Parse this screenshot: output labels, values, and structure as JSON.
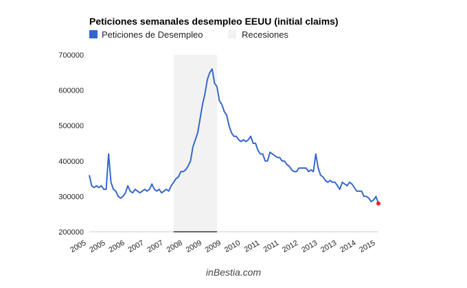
{
  "chart_data": {
    "type": "line",
    "title": "Peticiones semanales desempleo EEUU (initial claims)",
    "legend": {
      "placement": "top-left",
      "entries": [
        {
          "name": "Peticiones de Desempleo",
          "color": "#3366cc"
        },
        {
          "name": "Recesiones",
          "color": "#f2f2f2"
        }
      ]
    },
    "ylim": [
      200000,
      700000
    ],
    "yticks": [
      "200000",
      "300000",
      "400000",
      "500000",
      "600000",
      "700000"
    ],
    "xlim": [
      "2005-01",
      "2015-01"
    ],
    "xticks": [
      "2005",
      "2005",
      "2006",
      "2007",
      "2007",
      "2008",
      "2009",
      "2009",
      "2010",
      "2011",
      "2011",
      "2012",
      "2013",
      "2013",
      "2014",
      "2015"
    ],
    "grid": false,
    "recession": {
      "name": "Recesiones",
      "start": "2007-12",
      "end": "2009-06"
    },
    "series": [
      {
        "name": "Peticiones de Desempleo",
        "color": "#3366cc",
        "start": "2005-01",
        "frequency": "monthly",
        "values": [
          360000,
          330000,
          325000,
          330000,
          325000,
          330000,
          320000,
          320000,
          420000,
          340000,
          320000,
          315000,
          300000,
          295000,
          300000,
          310000,
          330000,
          315000,
          310000,
          320000,
          315000,
          310000,
          315000,
          320000,
          315000,
          320000,
          335000,
          320000,
          315000,
          320000,
          310000,
          315000,
          320000,
          315000,
          330000,
          340000,
          350000,
          355000,
          370000,
          370000,
          375000,
          385000,
          400000,
          440000,
          460000,
          480000,
          520000,
          560000,
          590000,
          630000,
          650000,
          660000,
          620000,
          610000,
          570000,
          560000,
          540000,
          530000,
          500000,
          480000,
          470000,
          470000,
          460000,
          455000,
          460000,
          455000,
          460000,
          470000,
          450000,
          450000,
          430000,
          420000,
          420000,
          400000,
          400000,
          425000,
          420000,
          415000,
          410000,
          410000,
          400000,
          400000,
          390000,
          385000,
          375000,
          370000,
          370000,
          380000,
          380000,
          380000,
          380000,
          370000,
          375000,
          370000,
          420000,
          380000,
          360000,
          355000,
          345000,
          340000,
          345000,
          340000,
          340000,
          330000,
          320000,
          340000,
          335000,
          330000,
          340000,
          335000,
          325000,
          315000,
          315000,
          315000,
          300000,
          300000,
          295000,
          285000,
          290000,
          300000,
          280000
        ]
      }
    ],
    "last_point": {
      "date": "2015-01",
      "value": 280000,
      "color": "#ee2222"
    },
    "footer": "inBestia.com"
  }
}
